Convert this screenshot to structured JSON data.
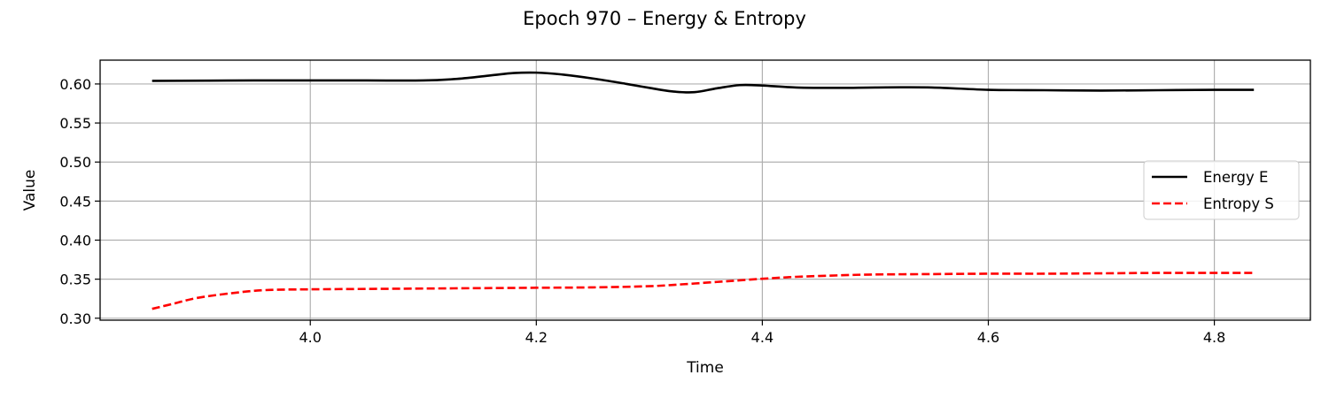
{
  "chart_data": {
    "type": "line",
    "title": "Epoch 970 – Energy & Entropy",
    "xlabel": "Time",
    "ylabel": "Value",
    "xlim": [
      3.814,
      4.885
    ],
    "ylim": [
      0.2975,
      0.6305
    ],
    "xticks": [
      4.0,
      4.2,
      4.4,
      4.6,
      4.8
    ],
    "xtick_labels": [
      "4.0",
      "4.2",
      "4.4",
      "4.6",
      "4.8"
    ],
    "yticks": [
      0.3,
      0.35,
      0.4,
      0.45,
      0.5,
      0.55,
      0.6
    ],
    "ytick_labels": [
      "0.30",
      "0.35",
      "0.40",
      "0.45",
      "0.50",
      "0.55",
      "0.60"
    ],
    "grid": true,
    "legend_position": "center-right",
    "series": [
      {
        "name": "Energy E",
        "color": "#000000",
        "style": "solid",
        "x": [
          3.86,
          3.95,
          4.0,
          4.05,
          4.1,
          4.13,
          4.16,
          4.18,
          4.2,
          4.22,
          4.25,
          4.28,
          4.3,
          4.32,
          4.34,
          4.36,
          4.38,
          4.4,
          4.43,
          4.47,
          4.5,
          4.55,
          4.6,
          4.65,
          4.7,
          4.75,
          4.8,
          4.835
        ],
        "y": [
          0.604,
          0.6045,
          0.6045,
          0.6045,
          0.6045,
          0.6065,
          0.611,
          0.614,
          0.6145,
          0.6125,
          0.607,
          0.6,
          0.595,
          0.5905,
          0.5895,
          0.5945,
          0.5985,
          0.598,
          0.5955,
          0.595,
          0.5955,
          0.5955,
          0.5925,
          0.592,
          0.5915,
          0.592,
          0.5925,
          0.5925
        ]
      },
      {
        "name": "Entropy S",
        "color": "#ff0000",
        "style": "dashed",
        "x": [
          3.86,
          3.88,
          3.9,
          3.93,
          3.96,
          4.0,
          4.05,
          4.1,
          4.15,
          4.2,
          4.25,
          4.3,
          4.33,
          4.36,
          4.38,
          4.4,
          4.43,
          4.47,
          4.5,
          4.55,
          4.6,
          4.65,
          4.7,
          4.75,
          4.8,
          4.835
        ],
        "y": [
          0.312,
          0.319,
          0.326,
          0.332,
          0.336,
          0.337,
          0.3375,
          0.338,
          0.3385,
          0.339,
          0.3395,
          0.341,
          0.3435,
          0.3465,
          0.3485,
          0.3505,
          0.353,
          0.355,
          0.356,
          0.3565,
          0.357,
          0.357,
          0.3575,
          0.358,
          0.358,
          0.358
        ]
      }
    ]
  }
}
